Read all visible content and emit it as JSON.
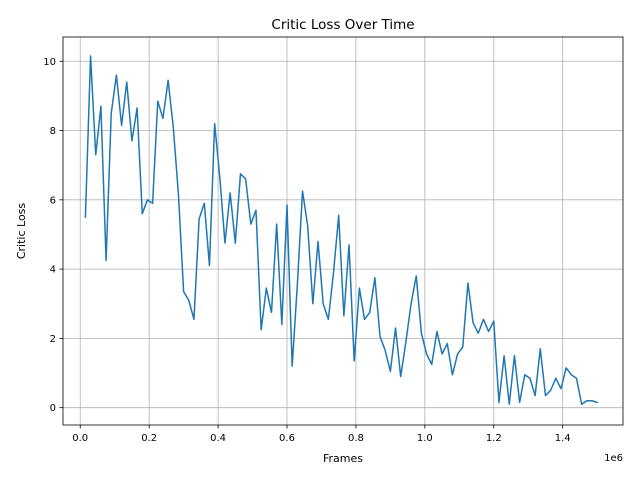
{
  "chart_data": {
    "type": "line",
    "title": "Critic Loss Over Time",
    "xlabel": "Frames",
    "ylabel": "Critic Loss",
    "x_offset_label": "1e6",
    "x_scale": 1000000,
    "xlim": [
      -50000,
      1575000
    ],
    "ylim": [
      -0.5,
      10.7
    ],
    "xticks": [
      0,
      200000,
      400000,
      600000,
      800000,
      1000000,
      1200000,
      1400000
    ],
    "xtick_labels": [
      "0.0",
      "0.2",
      "0.4",
      "0.6",
      "0.8",
      "1.0",
      "1.2",
      "1.4"
    ],
    "yticks": [
      0,
      2,
      4,
      6,
      8,
      10
    ],
    "ytick_labels": [
      "0",
      "2",
      "4",
      "6",
      "8",
      "10"
    ],
    "grid": true,
    "series": [
      {
        "name": "",
        "color": "#1f77b4",
        "x": [
          15000,
          30000,
          45000,
          60000,
          75000,
          90000,
          105000,
          120000,
          135000,
          150000,
          165000,
          180000,
          195000,
          210000,
          225000,
          240000,
          255000,
          270000,
          285000,
          300000,
          315000,
          330000,
          345000,
          360000,
          375000,
          390000,
          405000,
          420000,
          435000,
          450000,
          465000,
          480000,
          495000,
          510000,
          525000,
          540000,
          555000,
          570000,
          585000,
          600000,
          615000,
          630000,
          645000,
          660000,
          675000,
          690000,
          705000,
          720000,
          735000,
          750000,
          765000,
          780000,
          795000,
          810000,
          825000,
          840000,
          855000,
          870000,
          885000,
          900000,
          915000,
          930000,
          945000,
          960000,
          975000,
          990000,
          1005000,
          1020000,
          1035000,
          1050000,
          1065000,
          1080000,
          1095000,
          1110000,
          1125000,
          1140000,
          1155000,
          1170000,
          1185000,
          1200000,
          1215000,
          1230000,
          1245000,
          1260000,
          1275000,
          1290000,
          1305000,
          1320000,
          1335000,
          1350000,
          1365000,
          1380000,
          1395000,
          1410000,
          1425000,
          1440000,
          1455000,
          1470000,
          1485000,
          1500000
        ],
        "y": [
          5.5,
          10.15,
          7.3,
          8.7,
          4.25,
          8.5,
          9.6,
          8.15,
          9.4,
          7.7,
          8.65,
          5.6,
          6.0,
          5.9,
          8.85,
          8.35,
          9.45,
          8.1,
          6.15,
          3.35,
          3.1,
          2.55,
          5.45,
          5.9,
          4.1,
          8.2,
          6.65,
          4.75,
          6.2,
          4.75,
          6.75,
          6.6,
          5.3,
          5.7,
          2.25,
          3.45,
          2.75,
          5.3,
          2.4,
          5.85,
          1.2,
          3.55,
          6.25,
          5.25,
          3.0,
          4.8,
          3.0,
          2.55,
          3.9,
          5.55,
          2.65,
          4.7,
          1.35,
          3.45,
          2.55,
          2.75,
          3.75,
          2.05,
          1.65,
          1.05,
          2.3,
          0.9,
          1.9,
          3.0,
          3.8,
          2.15,
          1.55,
          1.25,
          2.2,
          1.55,
          1.85,
          0.95,
          1.55,
          1.75,
          3.6,
          2.45,
          2.15,
          2.55,
          2.2,
          2.5,
          0.15,
          1.5,
          0.1,
          1.5,
          0.15,
          0.95,
          0.85,
          0.35,
          1.7,
          0.35,
          0.5,
          0.85,
          0.55,
          1.15,
          0.95,
          0.85,
          0.1,
          0.2,
          0.2,
          0.15
        ]
      }
    ]
  }
}
